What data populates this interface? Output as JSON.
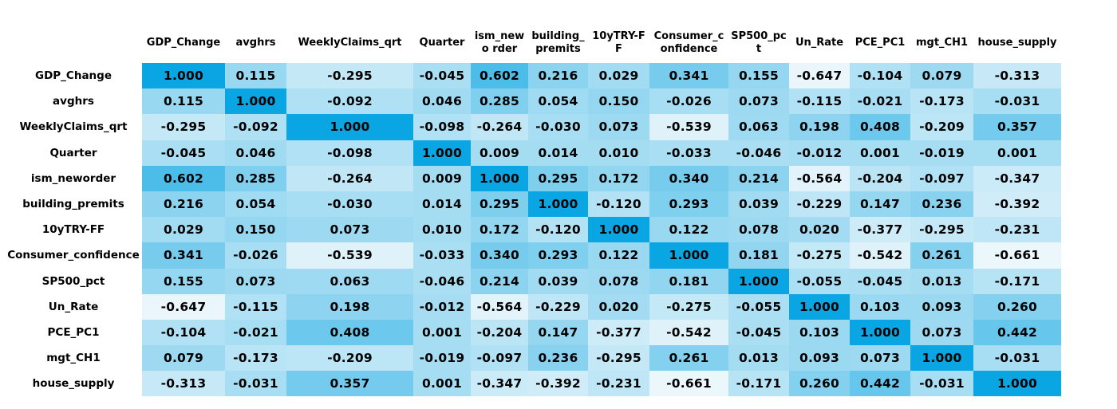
{
  "chart_data": {
    "type": "heatmap",
    "title": "",
    "columns": [
      "GDP_Change",
      "avghrs",
      "WeeklyClaims_qrt",
      "Quarter",
      "ism_neworder",
      "building_premits",
      "10yTRY-FF",
      "Consumer_confidence",
      "SP500_pct",
      "Un_Rate",
      "PCE_PC1",
      "mgt_CH1",
      "house_supply"
    ],
    "column_header_text": [
      "GDP_Change",
      "avghrs",
      "WeeklyClaims_qrt",
      "Quarter",
      "ism_newo rder",
      "building_ premits",
      "10yTRY-FF",
      "Consumer_c onfidence",
      "SP500_pct",
      "Un_Rate",
      "PCE_PC1",
      "mgt_CH1",
      "house_supply"
    ],
    "rows": [
      "GDP_Change",
      "avghrs",
      "WeeklyClaims_qrt",
      "Quarter",
      "ism_neworder",
      "building_premits",
      "10yTRY-FF",
      "Consumer_confidence",
      "SP500_pct",
      "Un_Rate",
      "PCE_PC1",
      "mgt_CH1",
      "house_supply"
    ],
    "values": [
      [
        "1.000",
        "0.115",
        "-0.295",
        "-0.045",
        "0.602",
        "0.216",
        "0.029",
        "0.341",
        "0.155",
        "-0.647",
        "-0.104",
        "0.079",
        "-0.313"
      ],
      [
        "0.115",
        "1.000",
        "-0.092",
        "0.046",
        "0.285",
        "0.054",
        "0.150",
        "-0.026",
        "0.073",
        "-0.115",
        "-0.021",
        "-0.173",
        "-0.031"
      ],
      [
        "-0.295",
        "-0.092",
        "1.000",
        "-0.098",
        "-0.264",
        "-0.030",
        "0.073",
        "-0.539",
        "0.063",
        "0.198",
        "0.408",
        "-0.209",
        "0.357"
      ],
      [
        "-0.045",
        "0.046",
        "-0.098",
        "1.000",
        "0.009",
        "0.014",
        "0.010",
        "-0.033",
        "-0.046",
        "-0.012",
        "0.001",
        "-0.019",
        "0.001"
      ],
      [
        "0.602",
        "0.285",
        "-0.264",
        "0.009",
        "1.000",
        "0.295",
        "0.172",
        "0.340",
        "0.214",
        "-0.564",
        "-0.204",
        "-0.097",
        "-0.347"
      ],
      [
        "0.216",
        "0.054",
        "-0.030",
        "0.014",
        "0.295",
        "1.000",
        "-0.120",
        "0.293",
        "0.039",
        "-0.229",
        "0.147",
        "0.236",
        "-0.392"
      ],
      [
        "0.029",
        "0.150",
        "0.073",
        "0.010",
        "0.172",
        "-0.120",
        "1.000",
        "0.122",
        "0.078",
        "0.020",
        "-0.377",
        "-0.295",
        "-0.231"
      ],
      [
        "0.341",
        "-0.026",
        "-0.539",
        "-0.033",
        "0.340",
        "0.293",
        "0.122",
        "1.000",
        "0.181",
        "-0.275",
        "-0.542",
        "0.261",
        "-0.661"
      ],
      [
        "0.155",
        "0.073",
        "0.063",
        "-0.046",
        "0.214",
        "0.039",
        "0.078",
        "0.181",
        "1.000",
        "-0.055",
        "-0.045",
        "0.013",
        "-0.171"
      ],
      [
        "-0.647",
        "-0.115",
        "0.198",
        "-0.012",
        "-0.564",
        "-0.229",
        "0.020",
        "-0.275",
        "-0.055",
        "1.000",
        "0.103",
        "0.093",
        "0.260"
      ],
      [
        "-0.104",
        "-0.021",
        "0.408",
        "0.001",
        "-0.204",
        "0.147",
        "-0.377",
        "-0.542",
        "-0.045",
        "0.103",
        "1.000",
        "0.073",
        "0.442"
      ],
      [
        "0.079",
        "-0.173",
        "-0.209",
        "-0.019",
        "-0.097",
        "0.236",
        "-0.295",
        "0.261",
        "0.013",
        "0.093",
        "0.073",
        "1.000",
        "-0.031"
      ],
      [
        "-0.313",
        "-0.031",
        "0.357",
        "0.001",
        "-0.347",
        "-0.392",
        "-0.231",
        "-0.661",
        "-0.171",
        "0.260",
        "0.442",
        "-0.031",
        "1.000"
      ]
    ],
    "value_range": [
      -0.661,
      1.0
    ],
    "color_scale": {
      "low": "#ecf7fc",
      "mid": "#93d6f0",
      "high": "#0aa6e3"
    },
    "grid": false,
    "legend": "none"
  }
}
